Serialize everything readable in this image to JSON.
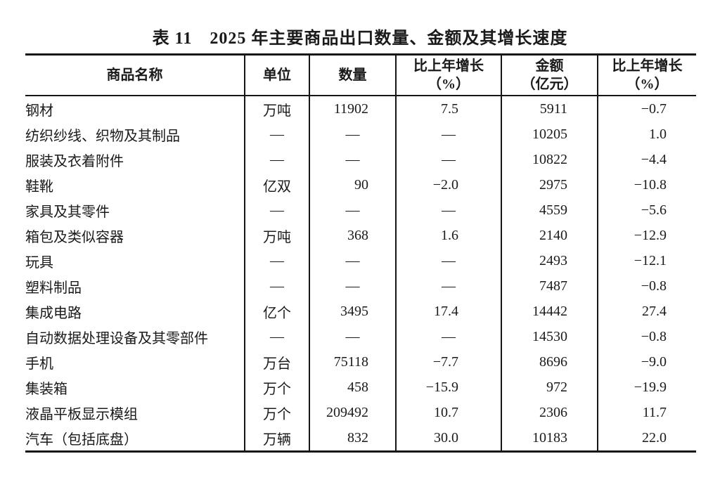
{
  "title": "表 11　2025 年主要商品出口数量、金额及其增长速度",
  "colors": {
    "background": "#ffffff",
    "text": "#1a1a1a",
    "border": "#151515"
  },
  "table": {
    "placeholder_dash": "—",
    "columns": [
      {
        "key": "name",
        "label": "商品名称"
      },
      {
        "key": "unit",
        "label": "单位"
      },
      {
        "key": "quantity",
        "label": "数量"
      },
      {
        "key": "quantity_growth",
        "label": "比上年增长",
        "label2": "（%）"
      },
      {
        "key": "amount",
        "label": "金额",
        "label2": "（亿元）"
      },
      {
        "key": "amount_growth",
        "label": "比上年增长",
        "label2": "（%）"
      }
    ],
    "rows": [
      {
        "name": "钢材",
        "unit": "万吨",
        "quantity": "11902",
        "quantity_growth": "7.5",
        "amount": "5911",
        "amount_growth": "-0.7"
      },
      {
        "name": "纺织纱线、织物及其制品",
        "unit": "—",
        "quantity": "—",
        "quantity_growth": "—",
        "amount": "10205",
        "amount_growth": "1.0"
      },
      {
        "name": "服装及衣着附件",
        "unit": "—",
        "quantity": "—",
        "quantity_growth": "—",
        "amount": "10822",
        "amount_growth": "-4.4"
      },
      {
        "name": "鞋靴",
        "unit": "亿双",
        "quantity": "90",
        "quantity_growth": "-2.0",
        "amount": "2975",
        "amount_growth": "-10.8"
      },
      {
        "name": "家具及其零件",
        "unit": "—",
        "quantity": "—",
        "quantity_growth": "—",
        "amount": "4559",
        "amount_growth": "-5.6"
      },
      {
        "name": "箱包及类似容器",
        "unit": "万吨",
        "quantity": "368",
        "quantity_growth": "1.6",
        "amount": "2140",
        "amount_growth": "-12.9"
      },
      {
        "name": "玩具",
        "unit": "—",
        "quantity": "—",
        "quantity_growth": "—",
        "amount": "2493",
        "amount_growth": "-12.1"
      },
      {
        "name": "塑料制品",
        "unit": "—",
        "quantity": "—",
        "quantity_growth": "—",
        "amount": "7487",
        "amount_growth": "-0.8"
      },
      {
        "name": "集成电路",
        "unit": "亿个",
        "quantity": "3495",
        "quantity_growth": "17.4",
        "amount": "14442",
        "amount_growth": "27.4"
      },
      {
        "name": "自动数据处理设备及其零部件",
        "unit": "—",
        "quantity": "—",
        "quantity_growth": "—",
        "amount": "14530",
        "amount_growth": "-0.8"
      },
      {
        "name": "手机",
        "unit": "万台",
        "quantity": "75118",
        "quantity_growth": "-7.7",
        "amount": "8696",
        "amount_growth": "-9.0"
      },
      {
        "name": "集装箱",
        "unit": "万个",
        "quantity": "458",
        "quantity_growth": "-15.9",
        "amount": "972",
        "amount_growth": "-19.9"
      },
      {
        "name": "液晶平板显示模组",
        "unit": "万个",
        "quantity": "209492",
        "quantity_growth": "10.7",
        "amount": "2306",
        "amount_growth": "11.7"
      },
      {
        "name": "汽车（包括底盘）",
        "unit": "万辆",
        "quantity": "832",
        "quantity_growth": "30.0",
        "amount": "10183",
        "amount_growth": "22.0"
      }
    ]
  }
}
